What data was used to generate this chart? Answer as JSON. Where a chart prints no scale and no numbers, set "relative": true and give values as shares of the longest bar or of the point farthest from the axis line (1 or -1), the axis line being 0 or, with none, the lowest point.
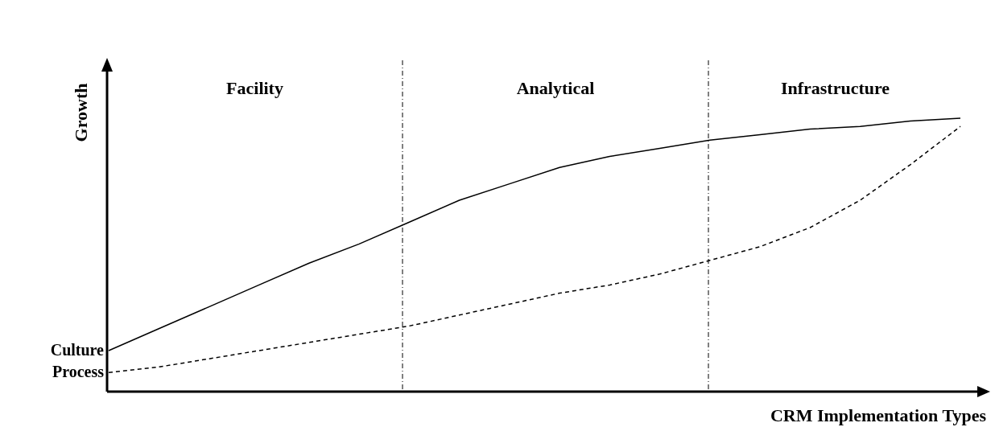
{
  "chart_data": {
    "type": "line",
    "relative": true,
    "xlabel": "CRM Implementation Types",
    "ylabel": "Growth",
    "legend": false,
    "marker": "none",
    "categories": [
      null,
      null,
      null,
      null,
      null,
      null,
      null,
      null,
      null,
      null,
      null,
      null,
      null,
      null,
      null,
      null,
      null,
      null
    ],
    "series": [
      {
        "name": "Culture",
        "color": "#000000",
        "line_style": "solid",
        "values": [
          0.15,
          0.23,
          0.31,
          0.39,
          0.47,
          0.54,
          0.62,
          0.7,
          0.76,
          0.82,
          0.86,
          0.89,
          0.92,
          0.94,
          0.96,
          0.97,
          0.99,
          1
        ]
      },
      {
        "name": "Process",
        "color": "#000000",
        "line_style": "dashed",
        "values": [
          0.07,
          0.09,
          0.12,
          0.15,
          0.18,
          0.21,
          0.24,
          0.28,
          0.32,
          0.36,
          0.39,
          0.43,
          0.48,
          0.53,
          0.6,
          0.7,
          0.83,
          0.97
        ]
      }
    ],
    "annotations": [
      "Facility",
      "Analytical",
      "Infrastructure"
    ]
  }
}
